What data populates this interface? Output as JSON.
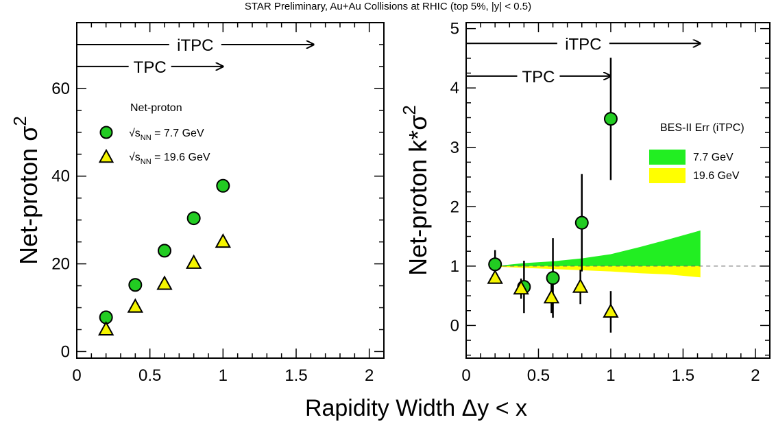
{
  "figure": {
    "top_title": "STAR Preliminary, Au+Au Collisions at RHIC (top 5%, |y| < 0.5)",
    "shared_xlabel": "Rapidity Width Δy < x"
  },
  "chart_data": [
    {
      "type": "scatter",
      "panel": "left",
      "ylabel_main": "Net-proton σ",
      "ylabel_sup": "2",
      "xlim": [
        0,
        2.1
      ],
      "ylim": [
        -1.5,
        75
      ],
      "x_ticks": [
        0,
        0.5,
        1,
        1.5,
        2
      ],
      "x_tick_labels": [
        "0",
        "0.5",
        "1",
        "1.5",
        "2"
      ],
      "y_ticks": [
        0,
        20,
        40,
        60
      ],
      "y_tick_labels": [
        "0",
        "20",
        "40",
        "60"
      ],
      "legend_title": "Net-proton",
      "legend_placement": "upper-left",
      "series": [
        {
          "label_main": "√s",
          "label_sub": "NN",
          "label_tail": " = 7.7 GeV",
          "marker": "circle",
          "color": "#22cc22",
          "x": [
            0.2,
            0.4,
            0.6,
            0.8,
            1.0
          ],
          "y": [
            7.8,
            15.2,
            23.0,
            30.4,
            37.8
          ]
        },
        {
          "label_main": "√s",
          "label_sub": "NN",
          "label_tail": " = 19.6 GeV",
          "marker": "triangle",
          "color": "#f5f500",
          "x": [
            0.2,
            0.4,
            0.6,
            0.8,
            1.0
          ],
          "y": [
            5.0,
            10.2,
            15.4,
            20.2,
            25.0
          ]
        }
      ],
      "arrows": [
        {
          "label": "iTPC",
          "x_start": 0,
          "x_end": 1.62,
          "y": 70
        },
        {
          "label": "TPC",
          "x_start": 0,
          "x_end": 1.0,
          "y": 65
        }
      ]
    },
    {
      "type": "scatter",
      "panel": "right",
      "ylabel_main": "Net-proton k*σ",
      "ylabel_sup": "2",
      "xlim": [
        0,
        2.1
      ],
      "ylim": [
        -0.55,
        5.1
      ],
      "x_ticks": [
        0,
        0.5,
        1,
        1.5,
        2
      ],
      "x_tick_labels": [
        "0",
        "0.5",
        "1",
        "1.5",
        "2"
      ],
      "y_ticks": [
        0,
        1,
        2,
        3,
        4,
        5
      ],
      "y_tick_labels": [
        "0",
        "1",
        "2",
        "3",
        "4",
        "5"
      ],
      "reference_line_y": 1,
      "legend_title": "BES-II Err (iTPC)",
      "legend_placement": "right",
      "series": [
        {
          "label": "7.7 GeV",
          "marker": "circle",
          "color": "#22cc22",
          "x": [
            0.2,
            0.4,
            0.6,
            0.8,
            1.0
          ],
          "y": [
            1.03,
            0.65,
            0.8,
            1.73,
            3.48
          ],
          "err": [
            0.24,
            0.44,
            0.67,
            0.82,
            1.03
          ]
        },
        {
          "label": "19.6 GeV",
          "marker": "triangle",
          "color": "#f5f500",
          "x": [
            0.2,
            0.38,
            0.59,
            0.79,
            1.0
          ],
          "y": [
            0.8,
            0.62,
            0.47,
            0.65,
            0.23
          ],
          "err": [
            0.06,
            0.17,
            0.26,
            0.29,
            0.35
          ]
        }
      ],
      "bands": [
        {
          "label": "7.7 GeV",
          "color": "#22ee22",
          "x": [
            0.2,
            0.4,
            0.6,
            0.8,
            1.0,
            1.2,
            1.4,
            1.62
          ],
          "upper": [
            1.0,
            1.05,
            1.08,
            1.13,
            1.2,
            1.32,
            1.45,
            1.6
          ],
          "lower": [
            1.0,
            1.0,
            1.0,
            1.0,
            1.0,
            1.0,
            1.0,
            1.0
          ]
        },
        {
          "label": "19.6 GeV",
          "color": "#ffff00",
          "x": [
            0.2,
            0.4,
            0.6,
            0.8,
            1.0,
            1.2,
            1.4,
            1.62
          ],
          "upper": [
            1.0,
            1.0,
            1.0,
            1.0,
            1.0,
            1.0,
            1.0,
            1.0
          ],
          "lower": [
            0.99,
            0.97,
            0.95,
            0.93,
            0.91,
            0.88,
            0.86,
            0.81
          ]
        }
      ],
      "arrows": [
        {
          "label": "iTPC",
          "x_start": 0,
          "x_end": 1.62,
          "y": 4.75
        },
        {
          "label": "TPC",
          "x_start": 0,
          "x_end": 1.0,
          "y": 4.2
        }
      ]
    }
  ]
}
